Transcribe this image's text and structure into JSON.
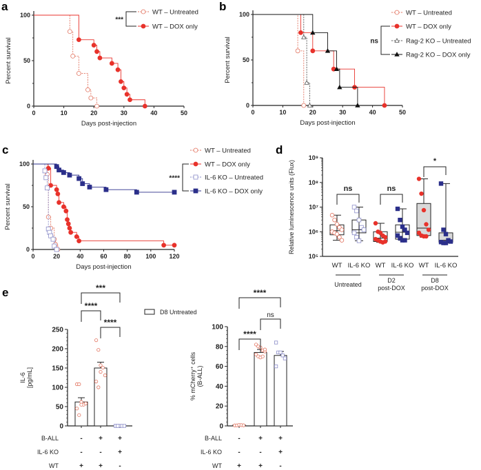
{
  "colors": {
    "wt_untreated": "#e2735f",
    "wt_dox": "#e8322b",
    "rag_untreated": "#555555",
    "rag_dox": "#111111",
    "il6_untreated": "#8a8cc8",
    "il6_dox": "#2b2f8a",
    "box_fill_d8": "#d9d9d9"
  },
  "panel_letters": [
    "a",
    "b",
    "c",
    "d",
    "e"
  ],
  "chart_data": [
    {
      "panel": "a",
      "type": "line",
      "subtype": "kaplan-meier",
      "xlabel": "Days post-injection",
      "ylabel": "Percent survival",
      "xlim": [
        0,
        50
      ],
      "ylim": [
        0,
        100
      ],
      "xticks": [
        0,
        10,
        20,
        30,
        40,
        50
      ],
      "yticks": [
        0,
        50,
        100
      ],
      "significance": "***",
      "series": [
        {
          "name": "WT – Untreated",
          "color": "#e2735f",
          "marker": "circle-open",
          "dashed": true,
          "events": [
            [
              12,
              82
            ],
            [
              13,
              55
            ],
            [
              15,
              36
            ],
            [
              18,
              18
            ],
            [
              19,
              9
            ],
            [
              21,
              0
            ]
          ]
        },
        {
          "name": "WT – DOX only",
          "color": "#e8322b",
          "marker": "circle-filled",
          "dashed": false,
          "events": [
            [
              15,
              73
            ],
            [
              20,
              67
            ],
            [
              21,
              60
            ],
            [
              22,
              53
            ],
            [
              26,
              47
            ],
            [
              28,
              40
            ],
            [
              29,
              27
            ],
            [
              30,
              20
            ],
            [
              31,
              13
            ],
            [
              32,
              7
            ],
            [
              37,
              0
            ]
          ]
        }
      ]
    },
    {
      "panel": "b",
      "type": "line",
      "subtype": "kaplan-meier",
      "xlabel": "Days post-injection",
      "ylabel": "Percent survival",
      "xlim": [
        0,
        50
      ],
      "ylim": [
        0,
        100
      ],
      "xticks": [
        0,
        10,
        20,
        30,
        40,
        50
      ],
      "yticks": [
        0,
        50,
        100
      ],
      "significance": "ns",
      "series": [
        {
          "name": "WT – Untreated",
          "color": "#e2735f",
          "marker": "circle-open",
          "dashed": true,
          "events": [
            [
              15,
              60
            ],
            [
              17,
              0
            ]
          ]
        },
        {
          "name": "WT – DOX only",
          "color": "#e8322b",
          "marker": "circle-filled",
          "dashed": false,
          "events": [
            [
              16,
              80
            ],
            [
              20,
              60
            ],
            [
              27,
              40
            ],
            [
              34,
              20
            ],
            [
              44,
              0
            ]
          ]
        },
        {
          "name": "Rag-2 KO – Untreated",
          "color": "#555555",
          "marker": "triangle-open",
          "dashed": true,
          "events": [
            [
              17,
              75
            ],
            [
              18,
              25
            ],
            [
              19,
              0
            ]
          ]
        },
        {
          "name": "Rag-2 KO – DOX only",
          "color": "#111111",
          "marker": "triangle-filled",
          "dashed": false,
          "events": [
            [
              20,
              80
            ],
            [
              25,
              60
            ],
            [
              28,
              40
            ],
            [
              29,
              20
            ],
            [
              35,
              0
            ]
          ]
        }
      ]
    },
    {
      "panel": "c",
      "type": "line",
      "subtype": "kaplan-meier",
      "xlabel": "Days post-injection",
      "ylabel": "Percent survival",
      "xlim": [
        0,
        120
      ],
      "ylim": [
        0,
        100
      ],
      "xticks": [
        0,
        20,
        40,
        60,
        80,
        100,
        120
      ],
      "yticks": [
        0,
        50,
        100
      ],
      "significance": "****",
      "series": [
        {
          "name": "WT – Untreated",
          "color": "#e2735f",
          "marker": "circle-open",
          "dashed": true,
          "events": [
            [
              12,
              88
            ],
            [
              13,
              38
            ],
            [
              15,
              25
            ],
            [
              18,
              12
            ],
            [
              19,
              6
            ],
            [
              21,
              0
            ]
          ]
        },
        {
          "name": "WT – DOX only",
          "color": "#e8322b",
          "marker": "circle-filled",
          "dashed": false,
          "events": [
            [
              13,
              95
            ],
            [
              15,
              75
            ],
            [
              20,
              70
            ],
            [
              21,
              65
            ],
            [
              22,
              55
            ],
            [
              26,
              50
            ],
            [
              28,
              45
            ],
            [
              29,
              35
            ],
            [
              30,
              30
            ],
            [
              31,
              25
            ],
            [
              32,
              20
            ],
            [
              37,
              15
            ],
            [
              39,
              10
            ],
            [
              111,
              5
            ],
            [
              120,
              5
            ]
          ]
        },
        {
          "name": "IL-6 KO – Untreated",
          "color": "#8a8cc8",
          "marker": "square-open",
          "dashed": true,
          "events": [
            [
              10,
              92
            ],
            [
              11,
              84
            ],
            [
              12,
              72
            ],
            [
              13,
              24
            ],
            [
              14,
              20
            ],
            [
              15,
              16
            ],
            [
              17,
              12
            ],
            [
              18,
              4
            ],
            [
              20,
              0
            ]
          ]
        },
        {
          "name": "IL-6 KO – DOX only",
          "color": "#2b2f8a",
          "marker": "square-filled",
          "dashed": false,
          "events": [
            [
              20,
              97
            ],
            [
              22,
              93
            ],
            [
              26,
              90
            ],
            [
              31,
              87
            ],
            [
              39,
              83
            ],
            [
              42,
              77
            ],
            [
              48,
              73
            ],
            [
              62,
              70
            ],
            [
              88,
              67
            ],
            [
              120,
              67
            ]
          ]
        }
      ]
    },
    {
      "panel": "d",
      "type": "box",
      "yscale": "log",
      "ylabel": "Relative luminescence units (Flux)",
      "ylim": [
        100000,
        1000000000
      ],
      "yticks": [
        "10⁵",
        "10⁶",
        "10⁷",
        "10⁸",
        "10⁹"
      ],
      "groups": [
        {
          "label_lines": [
            "Untreated"
          ],
          "significance": "ns",
          "boxes": [
            {
              "label": "WT",
              "color": "#e2735f",
              "marker": "circle-open",
              "filled_box": false,
              "min": 450000,
              "q1": 750000,
              "median": 1100000,
              "q3": 1900000,
              "max": 4700000,
              "points": [
                4700000,
                3000000,
                2000000,
                1500000,
                1200000,
                1000000,
                900000,
                800000,
                600000,
                450000
              ]
            },
            {
              "label": "IL-6 KO",
              "color": "#8a8cc8",
              "marker": "square-open",
              "filled_box": false,
              "min": 430000,
              "q1": 900000,
              "median": 1200000,
              "q3": 3000000,
              "max": 10000000,
              "points": [
                10000000,
                7000000,
                3000000,
                1500000,
                1200000,
                900000,
                600000,
                430000
              ]
            }
          ]
        },
        {
          "label_lines": [
            "D2",
            "post-DOX"
          ],
          "significance": "ns",
          "boxes": [
            {
              "label": "WT",
              "color": "#e8322b",
              "marker": "circle-filled",
              "filled_box": false,
              "min": 370000,
              "q1": 400000,
              "median": 550000,
              "q3": 1000000,
              "max": 2200000,
              "points": [
                2200000,
                1000000,
                900000,
                700000,
                600000,
                500000,
                450000,
                400000,
                370000,
                400000
              ]
            },
            {
              "label": "IL-6 KO",
              "color": "#2b2f8a",
              "marker": "square-filled",
              "filled_box": false,
              "min": 450000,
              "q1": 500000,
              "median": 950000,
              "q3": 1900000,
              "max": 8500000,
              "points": [
                8500000,
                3000000,
                1600000,
                1200000,
                900000,
                700000,
                550000,
                450000,
                450000
              ]
            }
          ]
        },
        {
          "label_lines": [
            "D8",
            "post-DOX"
          ],
          "significance": "*",
          "boxes": [
            {
              "label": "WT",
              "color": "#e8322b",
              "marker": "circle-filled",
              "filled_box": true,
              "min": 600000,
              "q1": 700000,
              "median": 1400000,
              "q3": 14000000,
              "max": 140000000,
              "points": [
                140000000,
                35000000,
                7500000,
                2000000,
                1200000,
                900000,
                700000,
                650000,
                650000
              ]
            },
            {
              "label": "IL-6 KO",
              "color": "#2b2f8a",
              "marker": "square-filled",
              "filled_box": true,
              "min": 350000,
              "q1": 380000,
              "median": 450000,
              "q3": 900000,
              "max": 90000000,
              "points": [
                90000000,
                1200000,
                800000,
                450000,
                400000,
                380000,
                350000,
                350000
              ]
            }
          ]
        }
      ]
    },
    {
      "panel": "e-left",
      "type": "bar",
      "ylabel_lines": [
        "IL-6",
        "[pg/mL]"
      ],
      "ylim": [
        0,
        250
      ],
      "yticks": [
        0,
        50,
        100,
        150,
        200,
        250
      ],
      "legend": "D8 Untreated",
      "values": [
        62,
        150,
        0
      ],
      "sem": [
        11,
        15,
        0
      ],
      "point_colors": [
        "#e2735f",
        "#e2735f",
        "#8a8cc8"
      ],
      "points": [
        [
          108,
          108,
          62,
          55,
          58,
          45,
          28,
          55
        ],
        [
          222,
          197,
          157,
          151,
          131,
          115,
          100,
          140
        ],
        [
          0,
          0,
          0,
          0,
          0,
          0,
          0
        ]
      ],
      "comparisons": [
        {
          "from": 0,
          "to": 2,
          "label": "***"
        },
        {
          "from": 0,
          "to": 1,
          "label": "****"
        },
        {
          "from": 1,
          "to": 2,
          "label": "****"
        }
      ],
      "conditions": [
        {
          "label": "B-ALL",
          "values": [
            "-",
            "+",
            "+"
          ]
        },
        {
          "label": "IL-6 KO",
          "values": [
            "-",
            "-",
            "+"
          ]
        },
        {
          "label": "WT",
          "values": [
            "+",
            "+",
            "-"
          ]
        }
      ]
    },
    {
      "panel": "e-right",
      "type": "bar",
      "ylabel_lines": [
        "% mCherry⁺ cells",
        "(B-ALL)"
      ],
      "ylim": [
        0,
        100
      ],
      "yticks": [
        0,
        20,
        40,
        60,
        80,
        100
      ],
      "values": [
        1,
        74,
        71
      ],
      "sem": [
        0,
        3,
        4
      ],
      "point_colors": [
        "#e2735f",
        "#e2735f",
        "#8a8cc8"
      ],
      "points": [
        [
          0.5,
          0.5,
          1,
          0.8,
          0.6
        ],
        [
          82,
          80,
          79,
          76,
          75,
          72,
          70,
          69,
          70,
          77
        ],
        [
          84,
          74,
          74,
          71,
          68,
          60
        ]
      ],
      "comparisons": [
        {
          "from": 0,
          "to": 2,
          "label": "****"
        },
        {
          "from": 1,
          "to": 2,
          "label": "ns"
        },
        {
          "from": 0,
          "to": 1,
          "label": "****"
        }
      ],
      "conditions": [
        {
          "label": "B-ALL",
          "values": [
            "-",
            "+",
            "+"
          ]
        },
        {
          "label": "IL-6 KO",
          "values": [
            "-",
            "-",
            "+"
          ]
        },
        {
          "label": "WT",
          "values": [
            "+",
            "+",
            "-"
          ]
        }
      ]
    }
  ]
}
